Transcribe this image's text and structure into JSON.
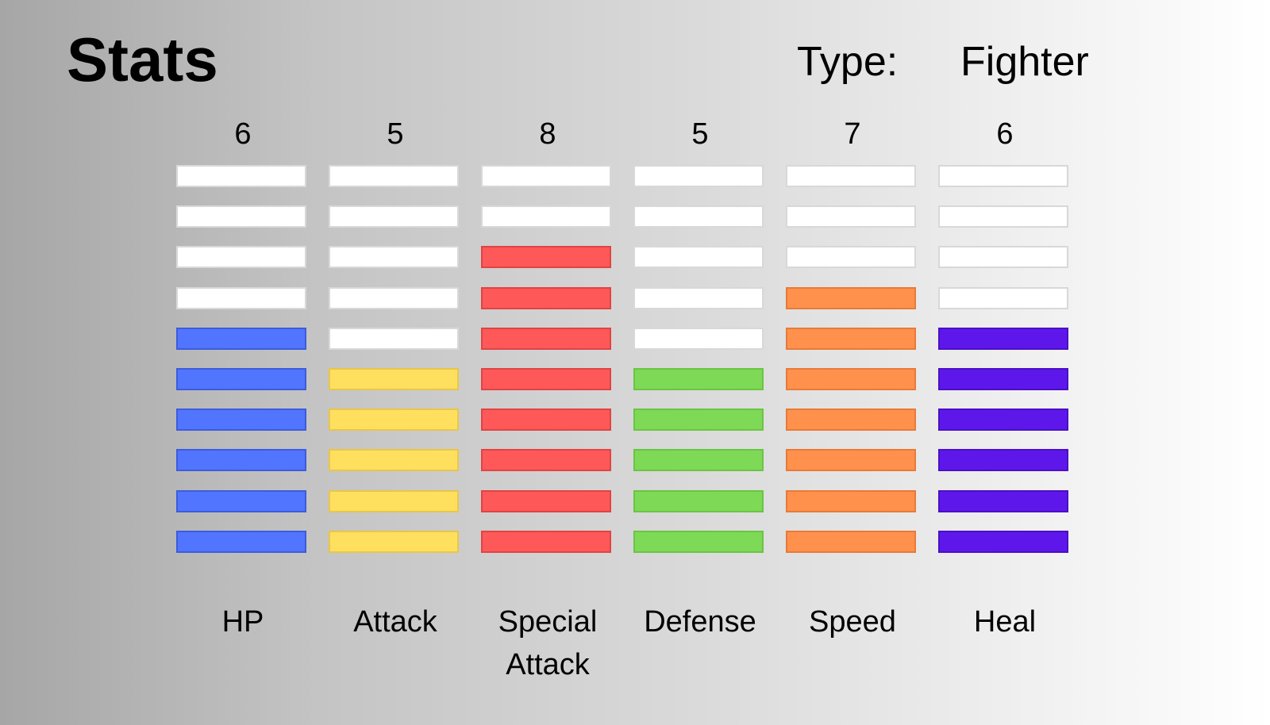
{
  "header": {
    "title": "Stats",
    "type_label": "Type:",
    "type_value": "Fighter"
  },
  "stats": {
    "max_segments": 10,
    "items": [
      {
        "name": "HP",
        "value": "6",
        "filled": 6,
        "color": "#5275ff",
        "border": "#3d5cdb"
      },
      {
        "name": "Attack",
        "value": "5",
        "filled": 5,
        "color": "#ffdf5e",
        "border": "#e8c64a"
      },
      {
        "name": "Special\nAttack",
        "value": "8",
        "filled": 8,
        "color": "#ff5858",
        "border": "#e04444"
      },
      {
        "name": "Defense",
        "value": "5",
        "filled": 5,
        "color": "#7ed957",
        "border": "#6bc444"
      },
      {
        "name": "Speed",
        "value": "7",
        "filled": 7,
        "color": "#ff914d",
        "border": "#e87a38"
      },
      {
        "name": "Heal",
        "value": "6",
        "filled": 6,
        "color": "#5e17eb",
        "border": "#4a0fc4"
      }
    ]
  }
}
